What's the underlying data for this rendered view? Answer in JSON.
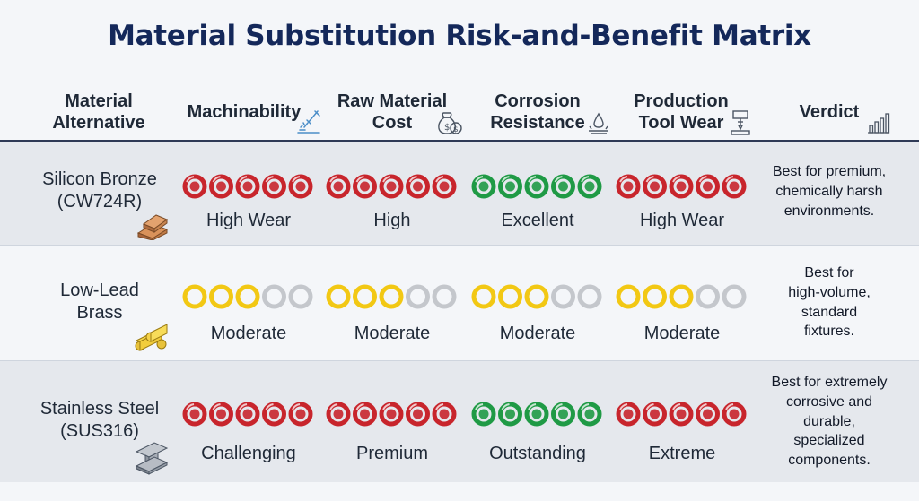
{
  "title": "Material Substitution Risk-and-Benefit Matrix",
  "headers": [
    {
      "lines": [
        "Material",
        "Alternative"
      ],
      "icon": null
    },
    {
      "lines": [
        "Machinability"
      ],
      "icon": "milling-tool-icon"
    },
    {
      "lines": [
        "Raw Material",
        "Cost"
      ],
      "icon": "money-bag-icon"
    },
    {
      "lines": [
        "Corrosion",
        "Resistance"
      ],
      "icon": "water-drop-icon"
    },
    {
      "lines": [
        "Production",
        "Tool Wear"
      ],
      "icon": "drill-press-icon"
    },
    {
      "lines": [
        "Verdict"
      ],
      "icon": "bar-chart-icon"
    }
  ],
  "colors": {
    "red": "#c8252c",
    "green": "#1f9a45",
    "yellow": "#f2c814",
    "empty": "#c4c7cc",
    "header_text": "#14285a"
  },
  "chart_data": {
    "type": "table",
    "scale_max": 5,
    "rows": [
      {
        "material": [
          "Silicon Bronze",
          "(CW724R)"
        ],
        "icon": "bronze-ingot-icon",
        "ratings": [
          {
            "color": "red",
            "level": 5,
            "label": "High Wear"
          },
          {
            "color": "red",
            "level": 5,
            "label": "High"
          },
          {
            "color": "green",
            "level": 5,
            "label": "Excellent"
          },
          {
            "color": "red",
            "level": 5,
            "label": "High Wear"
          }
        ],
        "verdict": [
          "Best for premium,",
          "chemically harsh",
          "environments."
        ]
      },
      {
        "material": [
          "Low-Lead",
          "Brass"
        ],
        "icon": "brass-bars-icon",
        "ratings": [
          {
            "color": "yellow",
            "level": 3,
            "label": "Moderate"
          },
          {
            "color": "yellow",
            "level": 3,
            "label": "Moderate"
          },
          {
            "color": "yellow",
            "level": 3,
            "label": "Moderate"
          },
          {
            "color": "yellow",
            "level": 3,
            "label": "Moderate"
          }
        ],
        "verdict": [
          "Best for",
          "high-volume,",
          "standard",
          "fixtures."
        ]
      },
      {
        "material": [
          "Stainless Steel",
          "(SUS316)"
        ],
        "icon": "steel-beam-icon",
        "ratings": [
          {
            "color": "red",
            "level": 5,
            "label": "Challenging"
          },
          {
            "color": "red",
            "level": 5,
            "label": "Premium"
          },
          {
            "color": "green",
            "level": 5,
            "label": "Outstanding"
          },
          {
            "color": "red",
            "level": 5,
            "label": "Extreme"
          }
        ],
        "verdict": [
          "Best for extremely",
          "corrosive and",
          "durable,",
          "specialized",
          "components."
        ]
      }
    ]
  }
}
